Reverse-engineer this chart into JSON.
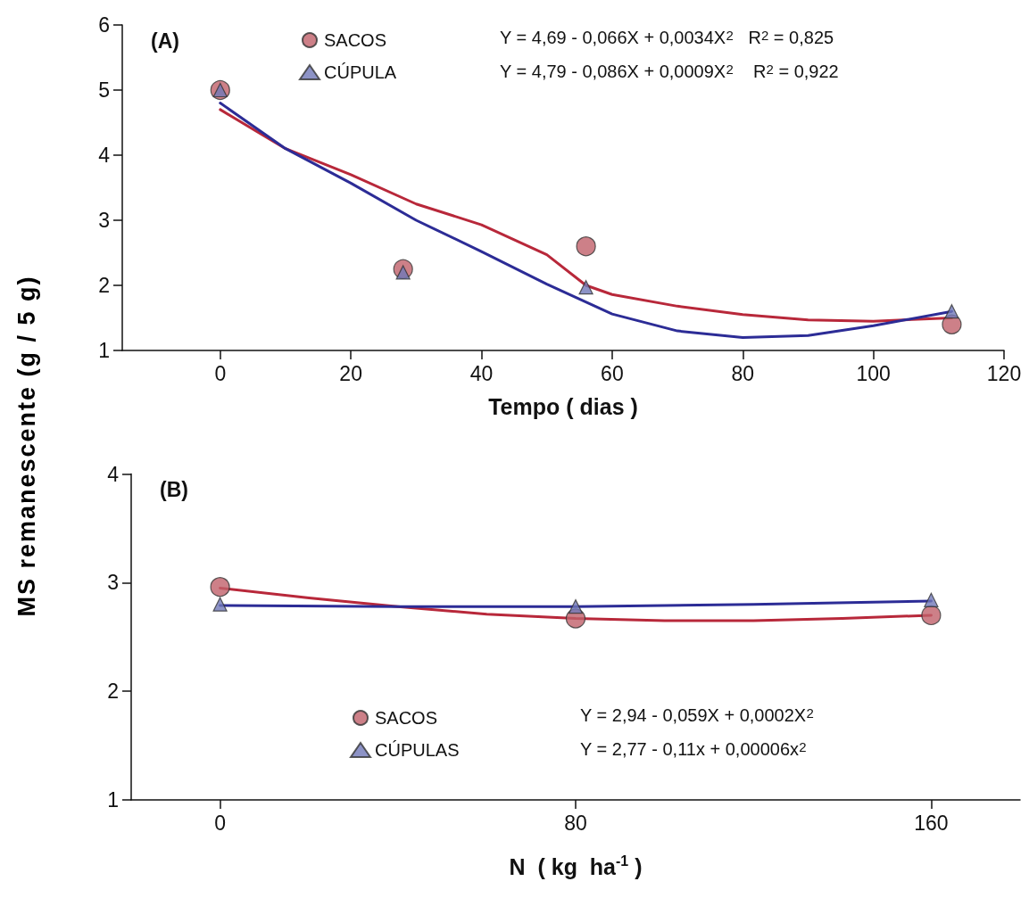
{
  "chart_data": [
    {
      "type": "scatter",
      "title": "(A)",
      "xlabel": "Tempo ( dias )",
      "ylabel": "MS remanescente (g / 5 g)",
      "xlim": [
        -15,
        120
      ],
      "xticks": [
        0,
        20,
        40,
        60,
        80,
        100,
        120
      ],
      "ylim": [
        1,
        6
      ],
      "yticks": [
        1,
        2,
        3,
        4,
        5,
        6
      ],
      "legend": "top",
      "annotations": [
        "Y = 4,69 - 0,066X + 0,0034X$^{2}$   R$^{2}$ = 0,825",
        "Y = 4,79 - 0,086X + 0,0009X$^{2}$    R$^{2}$ = 0,922"
      ],
      "series": [
        {
          "type": "line",
          "marker": "none",
          "color": "#b8283a",
          "x": [
            0,
            10,
            20,
            30,
            40,
            50,
            56,
            60,
            70,
            80,
            90,
            100,
            112
          ],
          "values": [
            4.7,
            4.1,
            3.7,
            3.25,
            2.93,
            2.47,
            2.0,
            1.86,
            1.68,
            1.55,
            1.47,
            1.45,
            1.5
          ]
        },
        {
          "type": "line",
          "marker": "none",
          "color": "#2c2c96",
          "x": [
            0,
            10,
            20,
            30,
            40,
            50,
            60,
            70,
            80,
            90,
            100,
            112
          ],
          "values": [
            4.8,
            4.1,
            3.57,
            3.0,
            2.52,
            2.02,
            1.56,
            1.3,
            1.2,
            1.23,
            1.38,
            1.6
          ]
        },
        {
          "name": "SACOS",
          "marker": "circle",
          "color": "#c0606a",
          "x": [
            0,
            28,
            56,
            112
          ],
          "values": [
            5.0,
            2.25,
            2.6,
            1.4
          ]
        },
        {
          "name": "CÚPULA",
          "marker": "triangle",
          "color": "#7078b8",
          "x": [
            0,
            28,
            56,
            112
          ],
          "values": [
            5.0,
            2.2,
            1.97,
            1.6
          ]
        }
      ]
    },
    {
      "type": "scatter",
      "title": "(B)",
      "xlabel": "N  ( kg  ha$^{-1}$ )",
      "xlim": [
        -20,
        180
      ],
      "xticks": [
        0,
        80,
        160
      ],
      "ylim": [
        1,
        4
      ],
      "yticks": [
        1,
        2,
        3,
        4
      ],
      "legend": "bottom",
      "annotations": [
        "Y = 2,94 - 0,059X + 0,0002X$^{2}$",
        "Y = 2,77 - 0,11x + 0,00006x$^{2}$"
      ],
      "series": [
        {
          "type": "line",
          "marker": "none",
          "color": "#b8283a",
          "x": [
            0,
            20,
            40,
            60,
            80,
            100,
            120,
            140,
            160
          ],
          "values": [
            2.95,
            2.86,
            2.78,
            2.71,
            2.67,
            2.65,
            2.65,
            2.67,
            2.7
          ]
        },
        {
          "type": "line",
          "marker": "none",
          "color": "#2c2c96",
          "x": [
            0,
            40,
            80,
            120,
            160
          ],
          "values": [
            2.79,
            2.78,
            2.78,
            2.8,
            2.83
          ]
        },
        {
          "name": "SACOS",
          "marker": "circle",
          "color": "#c0606a",
          "x": [
            0,
            80,
            160
          ],
          "values": [
            2.96,
            2.67,
            2.7
          ]
        },
        {
          "name": "CÚPULAS",
          "marker": "triangle",
          "color": "#7078b8",
          "x": [
            0,
            80,
            160
          ],
          "values": [
            2.8,
            2.78,
            2.84
          ]
        }
      ]
    }
  ]
}
